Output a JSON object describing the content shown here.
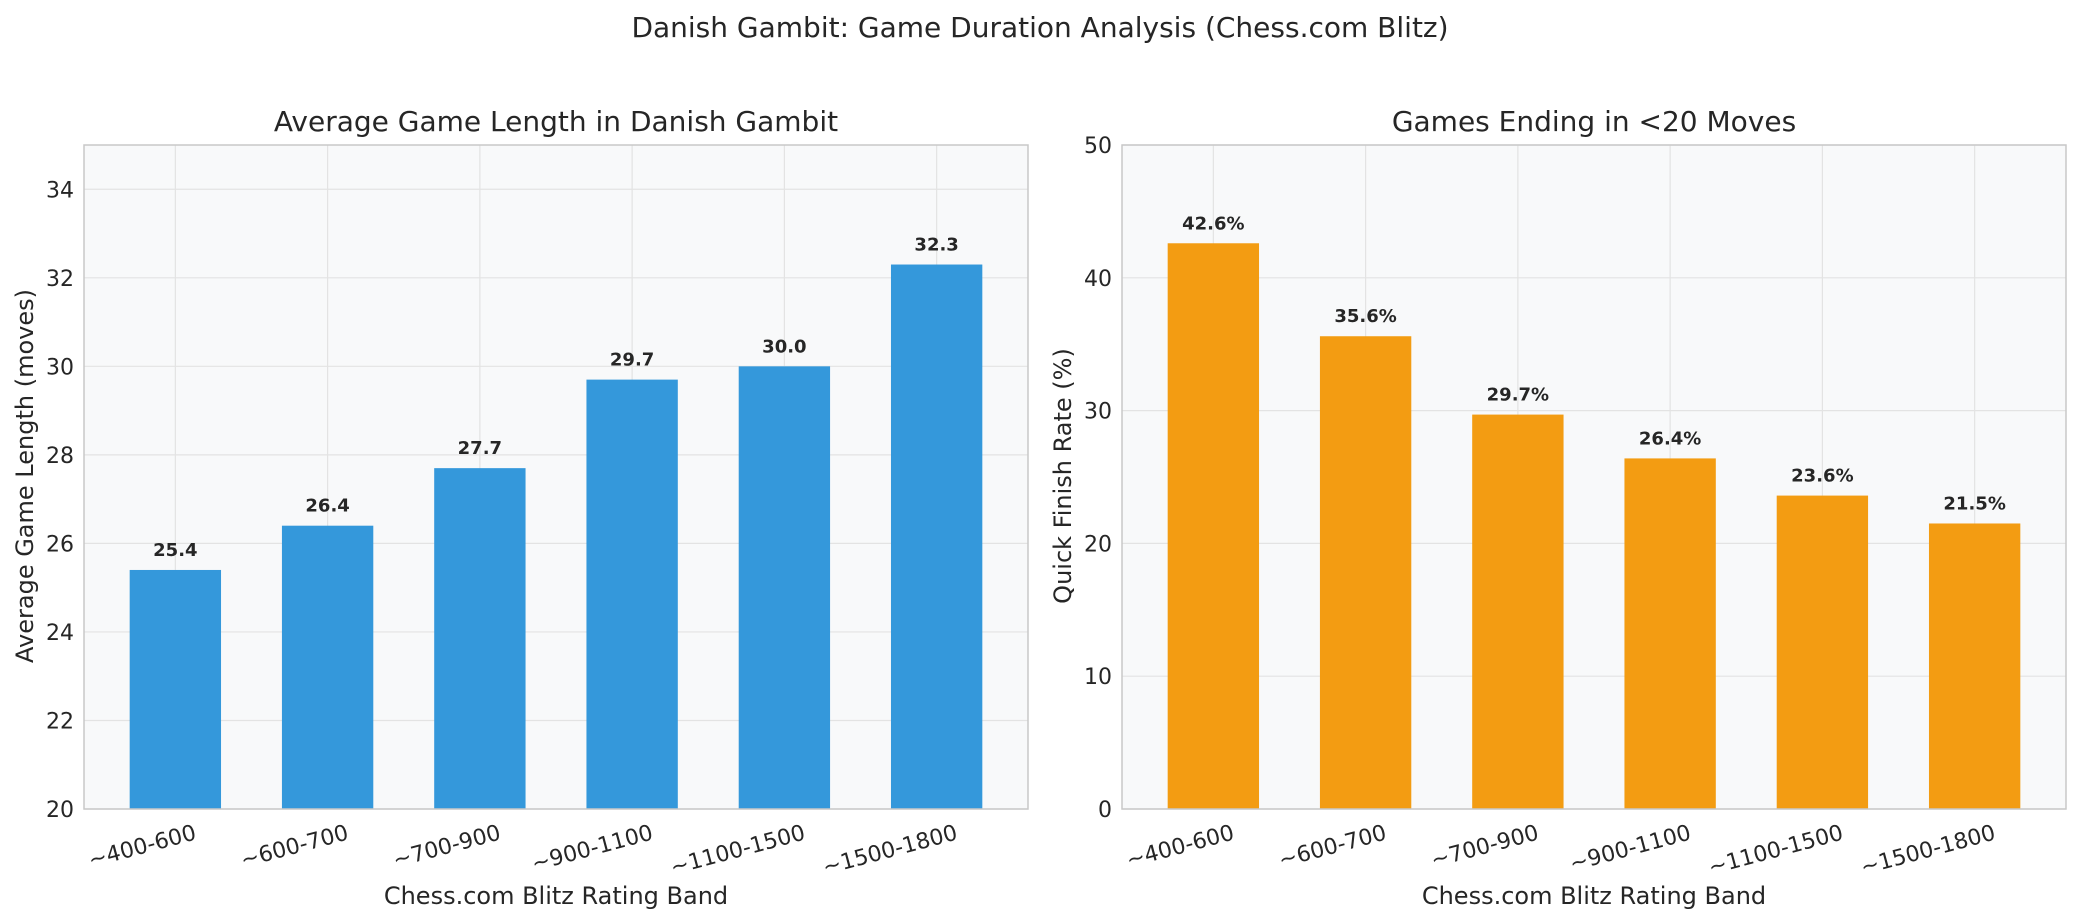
{
  "figure": {
    "title": "Danish Gambit: Game Duration Analysis (Chess.com Blitz)"
  },
  "chart_data": [
    {
      "type": "bar",
      "title": "Average Game Length in Danish Gambit",
      "xlabel": "Chess.com Blitz Rating Band",
      "ylabel": "Average Game Length (moves)",
      "categories": [
        "~400-600",
        "~600-700",
        "~700-900",
        "~900-1100",
        "~1100-1500",
        "~1500-1800"
      ],
      "values": [
        25.4,
        26.4,
        27.7,
        29.7,
        30.0,
        32.3
      ],
      "value_labels": [
        "25.4",
        "26.4",
        "27.7",
        "29.7",
        "30.0",
        "32.3"
      ],
      "ylim": [
        20,
        35
      ],
      "yticks": [
        20,
        22,
        24,
        26,
        28,
        30,
        32,
        34
      ],
      "color": "#3498db",
      "grid": true
    },
    {
      "type": "bar",
      "title": "Games Ending in <20 Moves",
      "xlabel": "Chess.com Blitz Rating Band",
      "ylabel": "Quick Finish Rate (%)",
      "categories": [
        "~400-600",
        "~600-700",
        "~700-900",
        "~900-1100",
        "~1100-1500",
        "~1500-1800"
      ],
      "values": [
        42.6,
        35.6,
        29.7,
        26.4,
        23.6,
        21.5
      ],
      "value_labels": [
        "42.6%",
        "35.6%",
        "29.7%",
        "26.4%",
        "23.6%",
        "21.5%"
      ],
      "ylim": [
        0,
        50
      ],
      "yticks": [
        0,
        10,
        20,
        30,
        40,
        50
      ],
      "color": "#f39c12",
      "grid": true
    }
  ]
}
